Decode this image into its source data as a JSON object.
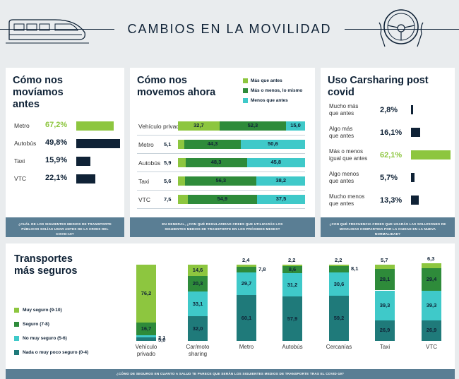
{
  "header": {
    "title": "CAMBIOS EN LA MOVILIDAD",
    "train_icon": "train-icon",
    "wheel_icon": "steering-wheel-icon"
  },
  "colors": {
    "light_green": "#8dc63f",
    "dark_green": "#2e8b3a",
    "cyan": "#3fc9c9",
    "teal": "#1f7a7a",
    "navy": "#0f2236",
    "footer": "#5a7e94"
  },
  "chart_data": [
    {
      "type": "bar",
      "title": "Cómo nos movíamos antes",
      "categories": [
        "Metro",
        "Autobús",
        "Taxi",
        "VTC"
      ],
      "values": [
        67.2,
        49.8,
        15.9,
        22.1
      ],
      "value_labels": [
        "67,2%",
        "49,8%",
        "15,9%",
        "22,1%"
      ],
      "highlight": "Metro",
      "footnote": "¿CUÁL DE LOS SIGUIENTES MEDIOS DE TRANSPORTE PÚBLICOS SOLÍAS USAR ANTES DE LA CRISIS DEL COVID-19?"
    },
    {
      "type": "bar",
      "stacked": true,
      "orientation": "horizontal",
      "title": "Cómo nos movemos ahora",
      "categories": [
        "Vehículo privado",
        "Metro",
        "Autobús",
        "Taxi",
        "VTC"
      ],
      "series": [
        {
          "name": "Más que antes",
          "values": [
            32.7,
            5.1,
            5.9,
            5.6,
            7.5
          ],
          "labels": [
            "32,7",
            "5,1",
            "5,9",
            "5,6",
            "7,5"
          ]
        },
        {
          "name": "Más o menos, lo mismo",
          "values": [
            52.3,
            44.3,
            48.3,
            56.3,
            54.9
          ],
          "labels": [
            "52,3",
            "44,3",
            "48,3",
            "56,3",
            "54,9"
          ]
        },
        {
          "name": "Menos que antes",
          "values": [
            15.0,
            50.6,
            45.8,
            38.2,
            37.5
          ],
          "labels": [
            "15,0",
            "50,6",
            "45,8",
            "38,2",
            "37,5"
          ]
        }
      ],
      "footnote": "EN GENERAL, ¿CON QUÉ REGULARIDAD CREES QUE UTILIZARÁS LOS SIGUIENTES MEDIOS DE TRANSPORTE EN LOS PRÓXIMOS MESES?"
    },
    {
      "type": "bar",
      "title": "Uso Carsharing post covid",
      "categories": [
        "Mucho más que antes",
        "Algo más que antes",
        "Más o menos igual que antes",
        "Algo menos que antes",
        "Mucho menos que antes"
      ],
      "category_lines": [
        [
          "Mucho más",
          "que antes"
        ],
        [
          "Algo más",
          "que antes"
        ],
        [
          "Más o menos",
          "igual que antes"
        ],
        [
          "Algo menos",
          "que antes"
        ],
        [
          "Mucho menos",
          "que antes"
        ]
      ],
      "values": [
        2.8,
        16.1,
        62.1,
        5.7,
        13.3
      ],
      "value_labels": [
        "2,8%",
        "16,1%",
        "62,1%",
        "5,7%",
        "13,3%"
      ],
      "highlight": "Más o menos igual que antes",
      "footnote": "¿CON QUÉ FRECUENCIA CREES QUE USARÁS LAS SOLUCIONES DE MOVILIDAD COMPARTIDA POR LA CIUDAD EN LA NUEVA NORMALIDAD?"
    },
    {
      "type": "bar",
      "stacked": true,
      "orientation": "vertical",
      "title": "Transportes más seguros",
      "categories": [
        "Vehículo privado",
        "Car/moto sharing",
        "Metro",
        "Autobús",
        "Cercanías",
        "Taxi",
        "VTC"
      ],
      "category_lines": [
        [
          "Vehículo",
          "privado"
        ],
        [
          "Car/moto",
          "sharing"
        ],
        [
          "Metro"
        ],
        [
          "Autobús"
        ],
        [
          "Cercanías"
        ],
        [
          "Taxi"
        ],
        [
          "VTC"
        ]
      ],
      "series": [
        {
          "name": "Muy seguro (9-10)",
          "values": [
            76.2,
            14.6,
            2.4,
            2.2,
            2.2,
            5.7,
            6.3
          ],
          "labels": [
            "76,2",
            "14,6",
            "2,4",
            "2,2",
            "2,2",
            "5,7",
            "6,3"
          ]
        },
        {
          "name": "Seguro (7-8)",
          "values": [
            16.7,
            20.3,
            7.8,
            8.6,
            8.1,
            28.1,
            29.4
          ],
          "labels": [
            "16,7",
            "20,3",
            "7,8",
            "8,6",
            "8,1",
            "28,1",
            "29,4"
          ]
        },
        {
          "name": "No muy seguro (5-6)",
          "values": [
            2.1,
            33.1,
            29.7,
            31.2,
            30.6,
            39.3,
            39.3
          ],
          "labels": [
            "2,1",
            "33,1",
            "29,7",
            "31,2",
            "30,6",
            "39,3",
            "39,3"
          ]
        },
        {
          "name": "Nada o muy poco seguro (0-4)",
          "values": [
            5.0,
            32.0,
            60.1,
            57.9,
            59.2,
            26.9,
            26.9
          ],
          "labels": [
            "5,0",
            "32,0",
            "60,1",
            "57,9",
            "59,2",
            "26,9",
            "26,9"
          ]
        }
      ],
      "footnote": "¿CÓMO DE SEGUROS EN CUANTO A SALUD TE PARECE QUE SERÁN LOS SIGUIENTES MEDIOS DE TRANSPORTE TRAS EL COVID-19?"
    }
  ]
}
